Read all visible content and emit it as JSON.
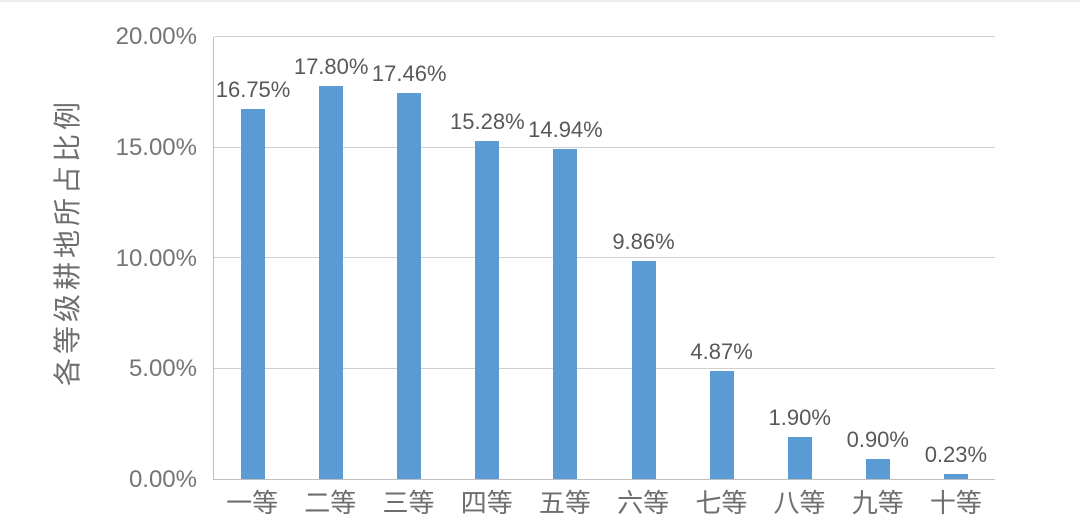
{
  "chart_data": {
    "type": "bar",
    "title": "",
    "xlabel": "",
    "ylabel": "各等级耕地所占比例",
    "categories": [
      "一等",
      "二等",
      "三等",
      "四等",
      "五等",
      "六等",
      "七等",
      "八等",
      "九等",
      "十等"
    ],
    "values": [
      16.75,
      17.8,
      17.46,
      15.28,
      14.94,
      9.86,
      4.87,
      1.9,
      0.9,
      0.23
    ],
    "value_labels": [
      "16.75%",
      "17.80%",
      "17.46%",
      "15.28%",
      "14.94%",
      "9.86%",
      "4.87%",
      "1.90%",
      "0.90%",
      "0.23%"
    ],
    "ylim": [
      0,
      20
    ],
    "yticks": [
      {
        "value": 0,
        "label": "0.00%"
      },
      {
        "value": 5,
        "label": "5.00%"
      },
      {
        "value": 10,
        "label": "10.00%"
      },
      {
        "value": 15,
        "label": "15.00%"
      },
      {
        "value": 20,
        "label": "20.00%"
      }
    ],
    "grid": "horizontal",
    "legend": "none",
    "colors": {
      "bar": "#5b9bd5",
      "gridline": "#cfcfcf",
      "axis_line": "#bfbfbf",
      "tick_text": "#757575",
      "value_text": "#595959"
    }
  }
}
